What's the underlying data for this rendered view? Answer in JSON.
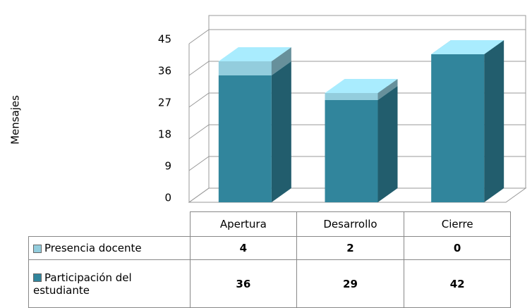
{
  "chart_data": {
    "type": "bar",
    "stacked": true,
    "y_label": "Mensajes",
    "categories": [
      "Apertura",
      "Desarrollo",
      "Cierre"
    ],
    "series": [
      {
        "name": "Presencia docente",
        "color": "#93cddd",
        "values": [
          4,
          2,
          0
        ]
      },
      {
        "name": "Participación del estudiante",
        "color": "#31859c",
        "values": [
          36,
          29,
          42
        ]
      }
    ],
    "ylim": [
      0,
      45
    ],
    "yticks": [
      0,
      9,
      18,
      27,
      36,
      45
    ],
    "grid": true,
    "data_table": true
  }
}
